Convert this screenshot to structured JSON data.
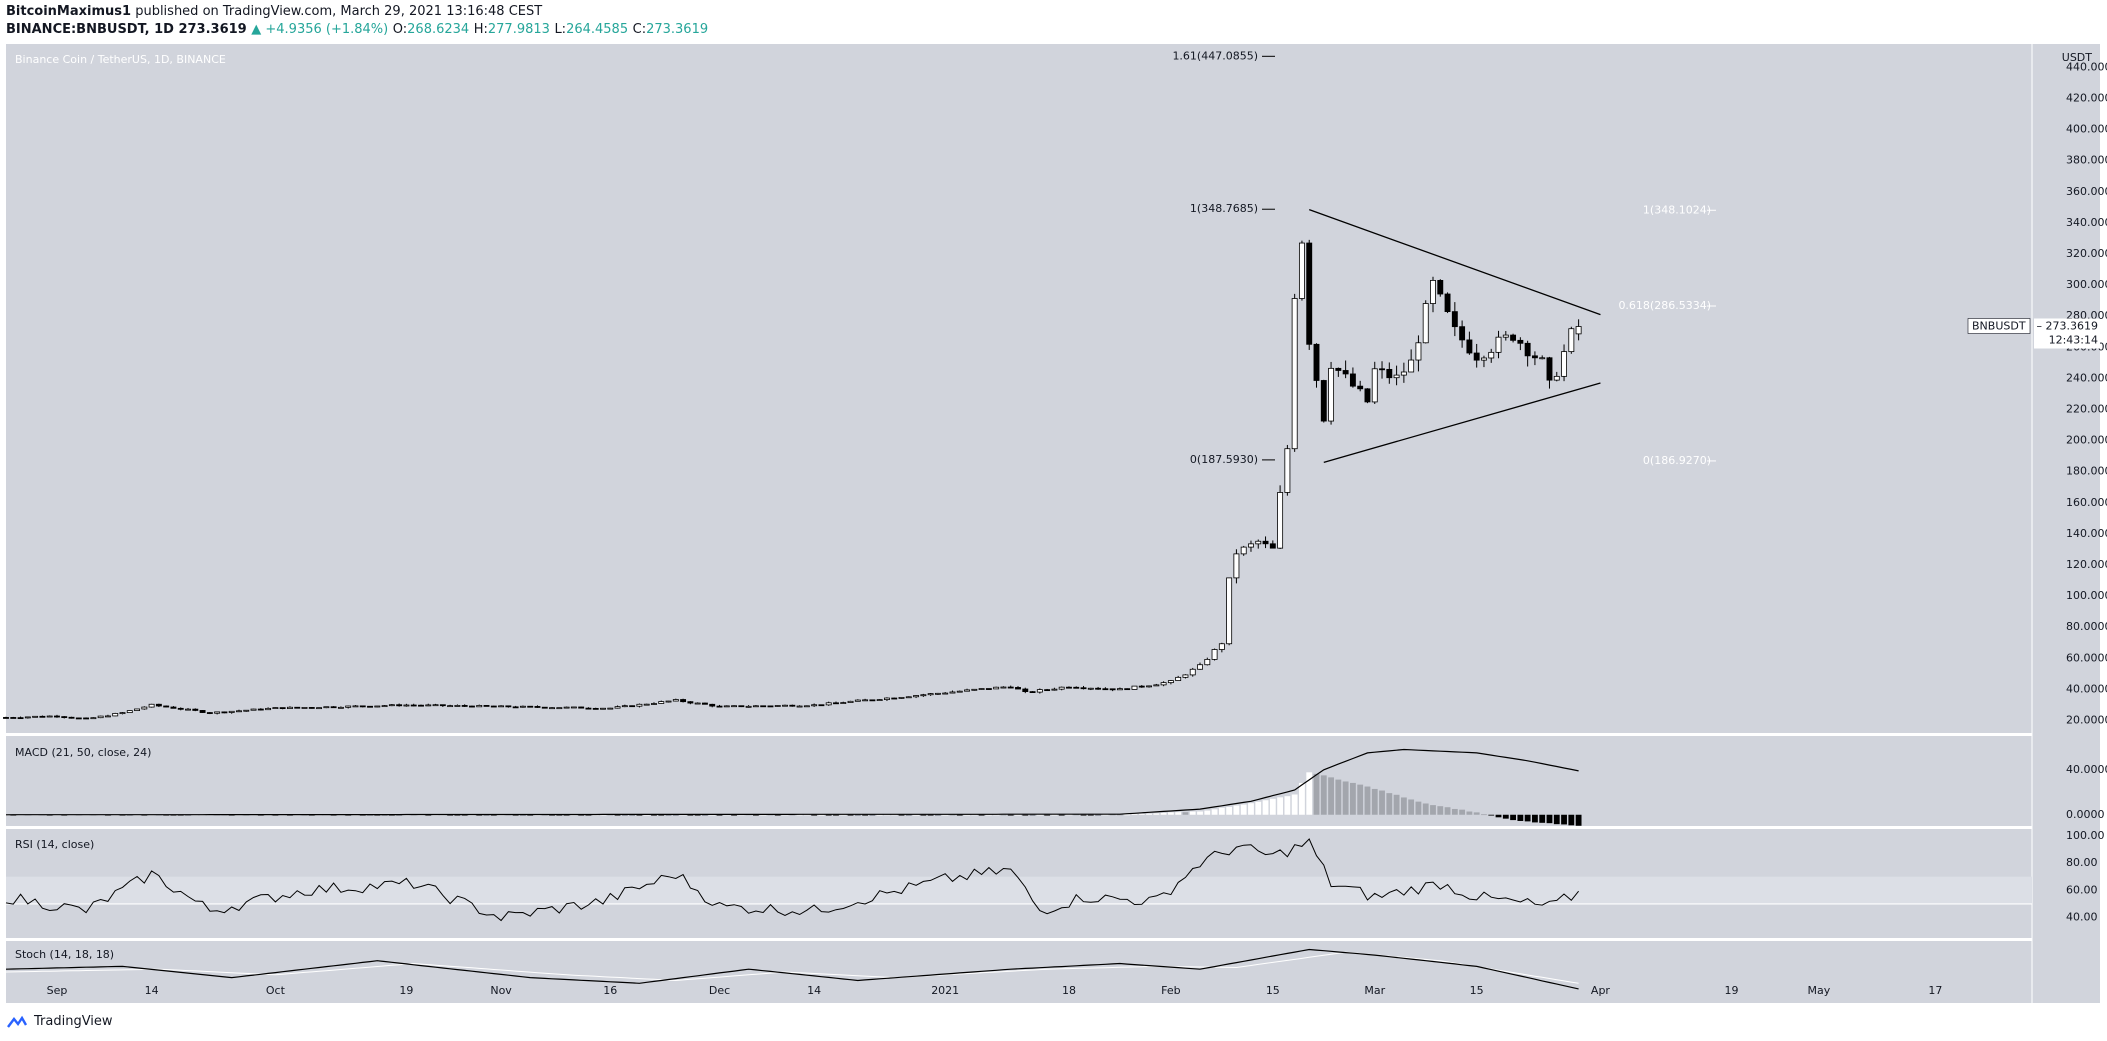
{
  "header": {
    "publisher": "BitcoinMaximus1",
    "published_text": "published on TradingView.com, March 29, 2021 13:16:48 CEST",
    "symbol_line": "BINANCE:BNBUSDT, 1D",
    "last": "273.3619",
    "change": "▲ +4.9356 (+1.84%)",
    "o_label": "O:",
    "o": "268.6234",
    "h_label": "H:",
    "h": "277.9813",
    "l_label": "L:",
    "l": "264.4585",
    "c_label": "C:",
    "c": "273.3619"
  },
  "footer": {
    "brand": "TradingView"
  },
  "colors": {
    "pane": "#d1d4dc",
    "pane_border": "#ffffff",
    "text": "#131722",
    "up": "#26a69a"
  },
  "chart_data": {
    "type": "candlestick",
    "title": "Binance Coin / TetherUS, 1D, BINANCE",
    "currency": "USDT",
    "ylim": [
      12,
      455
    ],
    "y_ticks": [
      "20.0000",
      "40.0000",
      "60.0000",
      "80.0000",
      "100.0000",
      "120.0000",
      "140.0000",
      "160.0000",
      "180.0000",
      "200.0000",
      "220.0000",
      "240.0000",
      "260.0000",
      "280.0000",
      "300.0000",
      "320.0000",
      "340.0000",
      "360.0000",
      "380.0000",
      "400.0000",
      "420.0000",
      "440.0000"
    ],
    "x_range": [
      "2020-08-25",
      "2021-05-30"
    ],
    "x_ticks": [
      {
        "date": "2020-09-01",
        "label": "Sep"
      },
      {
        "date": "2020-09-14",
        "label": "14"
      },
      {
        "date": "2020-10-01",
        "label": "Oct"
      },
      {
        "date": "2020-10-19",
        "label": "19"
      },
      {
        "date": "2020-11-01",
        "label": "Nov"
      },
      {
        "date": "2020-11-16",
        "label": "16"
      },
      {
        "date": "2020-12-01",
        "label": "Dec"
      },
      {
        "date": "2020-12-14",
        "label": "14"
      },
      {
        "date": "2021-01-01",
        "label": "2021"
      },
      {
        "date": "2021-01-18",
        "label": "18"
      },
      {
        "date": "2021-02-01",
        "label": "Feb"
      },
      {
        "date": "2021-02-15",
        "label": "15"
      },
      {
        "date": "2021-03-01",
        "label": "Mar"
      },
      {
        "date": "2021-03-15",
        "label": "15"
      },
      {
        "date": "2021-04-01",
        "label": "Apr"
      },
      {
        "date": "2021-04-19",
        "label": "19"
      },
      {
        "date": "2021-05-01",
        "label": "May"
      },
      {
        "date": "2021-05-17",
        "label": "17"
      }
    ],
    "price_label": {
      "symbol": "BNBUSDT",
      "value": "273.3619",
      "countdown": "12:43:14"
    },
    "close_anchors": [
      [
        "2020-08-25",
        22
      ],
      [
        "2020-09-01",
        23
      ],
      [
        "2020-09-05",
        21
      ],
      [
        "2020-09-10",
        25
      ],
      [
        "2020-09-14",
        30
      ],
      [
        "2020-09-22",
        25
      ],
      [
        "2020-10-01",
        28
      ],
      [
        "2020-10-19",
        30
      ],
      [
        "2020-11-01",
        29
      ],
      [
        "2020-11-16",
        28
      ],
      [
        "2020-11-25",
        33
      ],
      [
        "2020-12-01",
        29
      ],
      [
        "2020-12-14",
        30
      ],
      [
        "2021-01-01",
        38
      ],
      [
        "2021-01-10",
        42
      ],
      [
        "2021-01-12",
        38
      ],
      [
        "2021-01-18",
        42
      ],
      [
        "2021-01-25",
        40
      ],
      [
        "2021-02-01",
        45
      ],
      [
        "2021-02-05",
        55
      ],
      [
        "2021-02-08",
        70
      ],
      [
        "2021-02-09",
        110
      ],
      [
        "2021-02-10",
        128
      ],
      [
        "2021-02-13",
        135
      ],
      [
        "2021-02-15",
        130
      ],
      [
        "2021-02-16",
        165
      ],
      [
        "2021-02-17",
        195
      ],
      [
        "2021-02-18",
        295
      ],
      [
        "2021-02-19",
        330
      ],
      [
        "2021-02-20",
        265
      ],
      [
        "2021-02-21",
        240
      ],
      [
        "2021-02-22",
        215
      ],
      [
        "2021-02-23",
        250
      ],
      [
        "2021-02-28",
        225
      ],
      [
        "2021-03-01",
        245
      ],
      [
        "2021-03-04",
        240
      ],
      [
        "2021-03-06",
        250
      ],
      [
        "2021-03-09",
        300
      ],
      [
        "2021-03-10",
        290
      ],
      [
        "2021-03-12",
        270
      ],
      [
        "2021-03-15",
        255
      ],
      [
        "2021-03-20",
        268
      ],
      [
        "2021-03-24",
        250
      ],
      [
        "2021-03-25",
        235
      ],
      [
        "2021-03-26",
        245
      ],
      [
        "2021-03-28",
        268
      ],
      [
        "2021-03-29",
        273.36
      ]
    ],
    "fib_levels": [
      {
        "label": "1.61(447.0855)",
        "value": 447.0855,
        "side": "left"
      },
      {
        "label": "1(348.7685)",
        "value": 348.7685,
        "side": "left"
      },
      {
        "label": "0(187.5930)",
        "value": 187.593,
        "side": "left"
      },
      {
        "label": "1(348.1024)",
        "value": 348.1024,
        "side": "right"
      },
      {
        "label": "0.618(286.5334)",
        "value": 286.5334,
        "side": "right"
      },
      {
        "label": "0(186.9270)",
        "value": 186.927,
        "side": "right"
      }
    ],
    "trendlines": [
      {
        "name": "upper",
        "from": [
          "2021-02-20",
          348.5
        ],
        "to": [
          "2021-04-01",
          281
        ]
      },
      {
        "name": "lower",
        "from": [
          "2021-02-22",
          186
        ],
        "to": [
          "2021-04-01",
          237
        ]
      }
    ],
    "macd": {
      "label": "MACD (21, 50, close, 24)",
      "ylim": [
        -10,
        70
      ],
      "y_ticks": [
        "0.0000",
        "40.0000"
      ],
      "line_anchors": [
        [
          "2020-08-25",
          0
        ],
        [
          "2021-01-25",
          0.5
        ],
        [
          "2021-02-05",
          5
        ],
        [
          "2021-02-12",
          12
        ],
        [
          "2021-02-18",
          22
        ],
        [
          "2021-02-22",
          40
        ],
        [
          "2021-02-28",
          55
        ],
        [
          "2021-03-05",
          58
        ],
        [
          "2021-03-15",
          55
        ],
        [
          "2021-03-22",
          48
        ],
        [
          "2021-03-29",
          39
        ]
      ],
      "hist_anchors": [
        [
          "2020-08-25",
          0
        ],
        [
          "2021-01-25",
          0
        ],
        [
          "2021-02-05",
          3
        ],
        [
          "2021-02-12",
          10
        ],
        [
          "2021-02-18",
          18
        ],
        [
          "2021-02-20",
          38
        ],
        [
          "2021-02-28",
          25
        ],
        [
          "2021-03-08",
          10
        ],
        [
          "2021-03-15",
          2
        ],
        [
          "2021-03-20",
          -5
        ],
        [
          "2021-03-29",
          -10
        ]
      ]
    },
    "rsi": {
      "label": "RSI (14, close)",
      "ylim": [
        25,
        105
      ],
      "y_ticks": [
        "40.00",
        "60.00",
        "80.00",
        "100.00"
      ],
      "band": [
        50,
        70
      ],
      "anchors": [
        [
          "2020-08-25",
          55
        ],
        [
          "2020-09-05",
          45
        ],
        [
          "2020-09-14",
          72
        ],
        [
          "2020-09-22",
          45
        ],
        [
          "2020-10-05",
          60
        ],
        [
          "2020-10-20",
          65
        ],
        [
          "2020-11-01",
          40
        ],
        [
          "2020-11-15",
          52
        ],
        [
          "2020-11-25",
          72
        ],
        [
          "2020-12-01",
          48
        ],
        [
          "2020-12-14",
          45
        ],
        [
          "2021-01-01",
          68
        ],
        [
          "2021-01-10",
          75
        ],
        [
          "2021-01-14",
          45
        ],
        [
          "2021-01-20",
          55
        ],
        [
          "2021-01-30",
          52
        ],
        [
          "2021-02-05",
          80
        ],
        [
          "2021-02-10",
          92
        ],
        [
          "2021-02-15",
          85
        ],
        [
          "2021-02-20",
          95
        ],
        [
          "2021-02-23",
          65
        ],
        [
          "2021-03-01",
          55
        ],
        [
          "2021-03-10",
          65
        ],
        [
          "2021-03-15",
          55
        ],
        [
          "2021-03-25",
          48
        ],
        [
          "2021-03-29",
          58
        ]
      ]
    },
    "stoch": {
      "label": "Stoch (14, 18, 18)",
      "ylim": [
        -5,
        105
      ],
      "k_anchors": [
        [
          "2020-08-25",
          55
        ],
        [
          "2020-09-10",
          60
        ],
        [
          "2020-09-25",
          40
        ],
        [
          "2020-10-15",
          70
        ],
        [
          "2020-11-05",
          40
        ],
        [
          "2020-11-20",
          30
        ],
        [
          "2020-12-05",
          55
        ],
        [
          "2020-12-20",
          35
        ],
        [
          "2021-01-10",
          55
        ],
        [
          "2021-01-25",
          65
        ],
        [
          "2021-02-05",
          55
        ],
        [
          "2021-02-20",
          90
        ],
        [
          "2021-03-01",
          80
        ],
        [
          "2021-03-15",
          60
        ],
        [
          "2021-03-29",
          20
        ]
      ],
      "d_anchors": [
        [
          "2020-08-25",
          50
        ],
        [
          "2020-09-15",
          55
        ],
        [
          "2020-10-01",
          45
        ],
        [
          "2020-10-20",
          65
        ],
        [
          "2020-11-10",
          45
        ],
        [
          "2020-11-25",
          35
        ],
        [
          "2020-12-10",
          50
        ],
        [
          "2020-12-25",
          40
        ],
        [
          "2021-01-15",
          55
        ],
        [
          "2021-01-30",
          60
        ],
        [
          "2021-02-10",
          58
        ],
        [
          "2021-02-25",
          85
        ],
        [
          "2021-03-10",
          70
        ],
        [
          "2021-03-29",
          30
        ]
      ]
    }
  }
}
